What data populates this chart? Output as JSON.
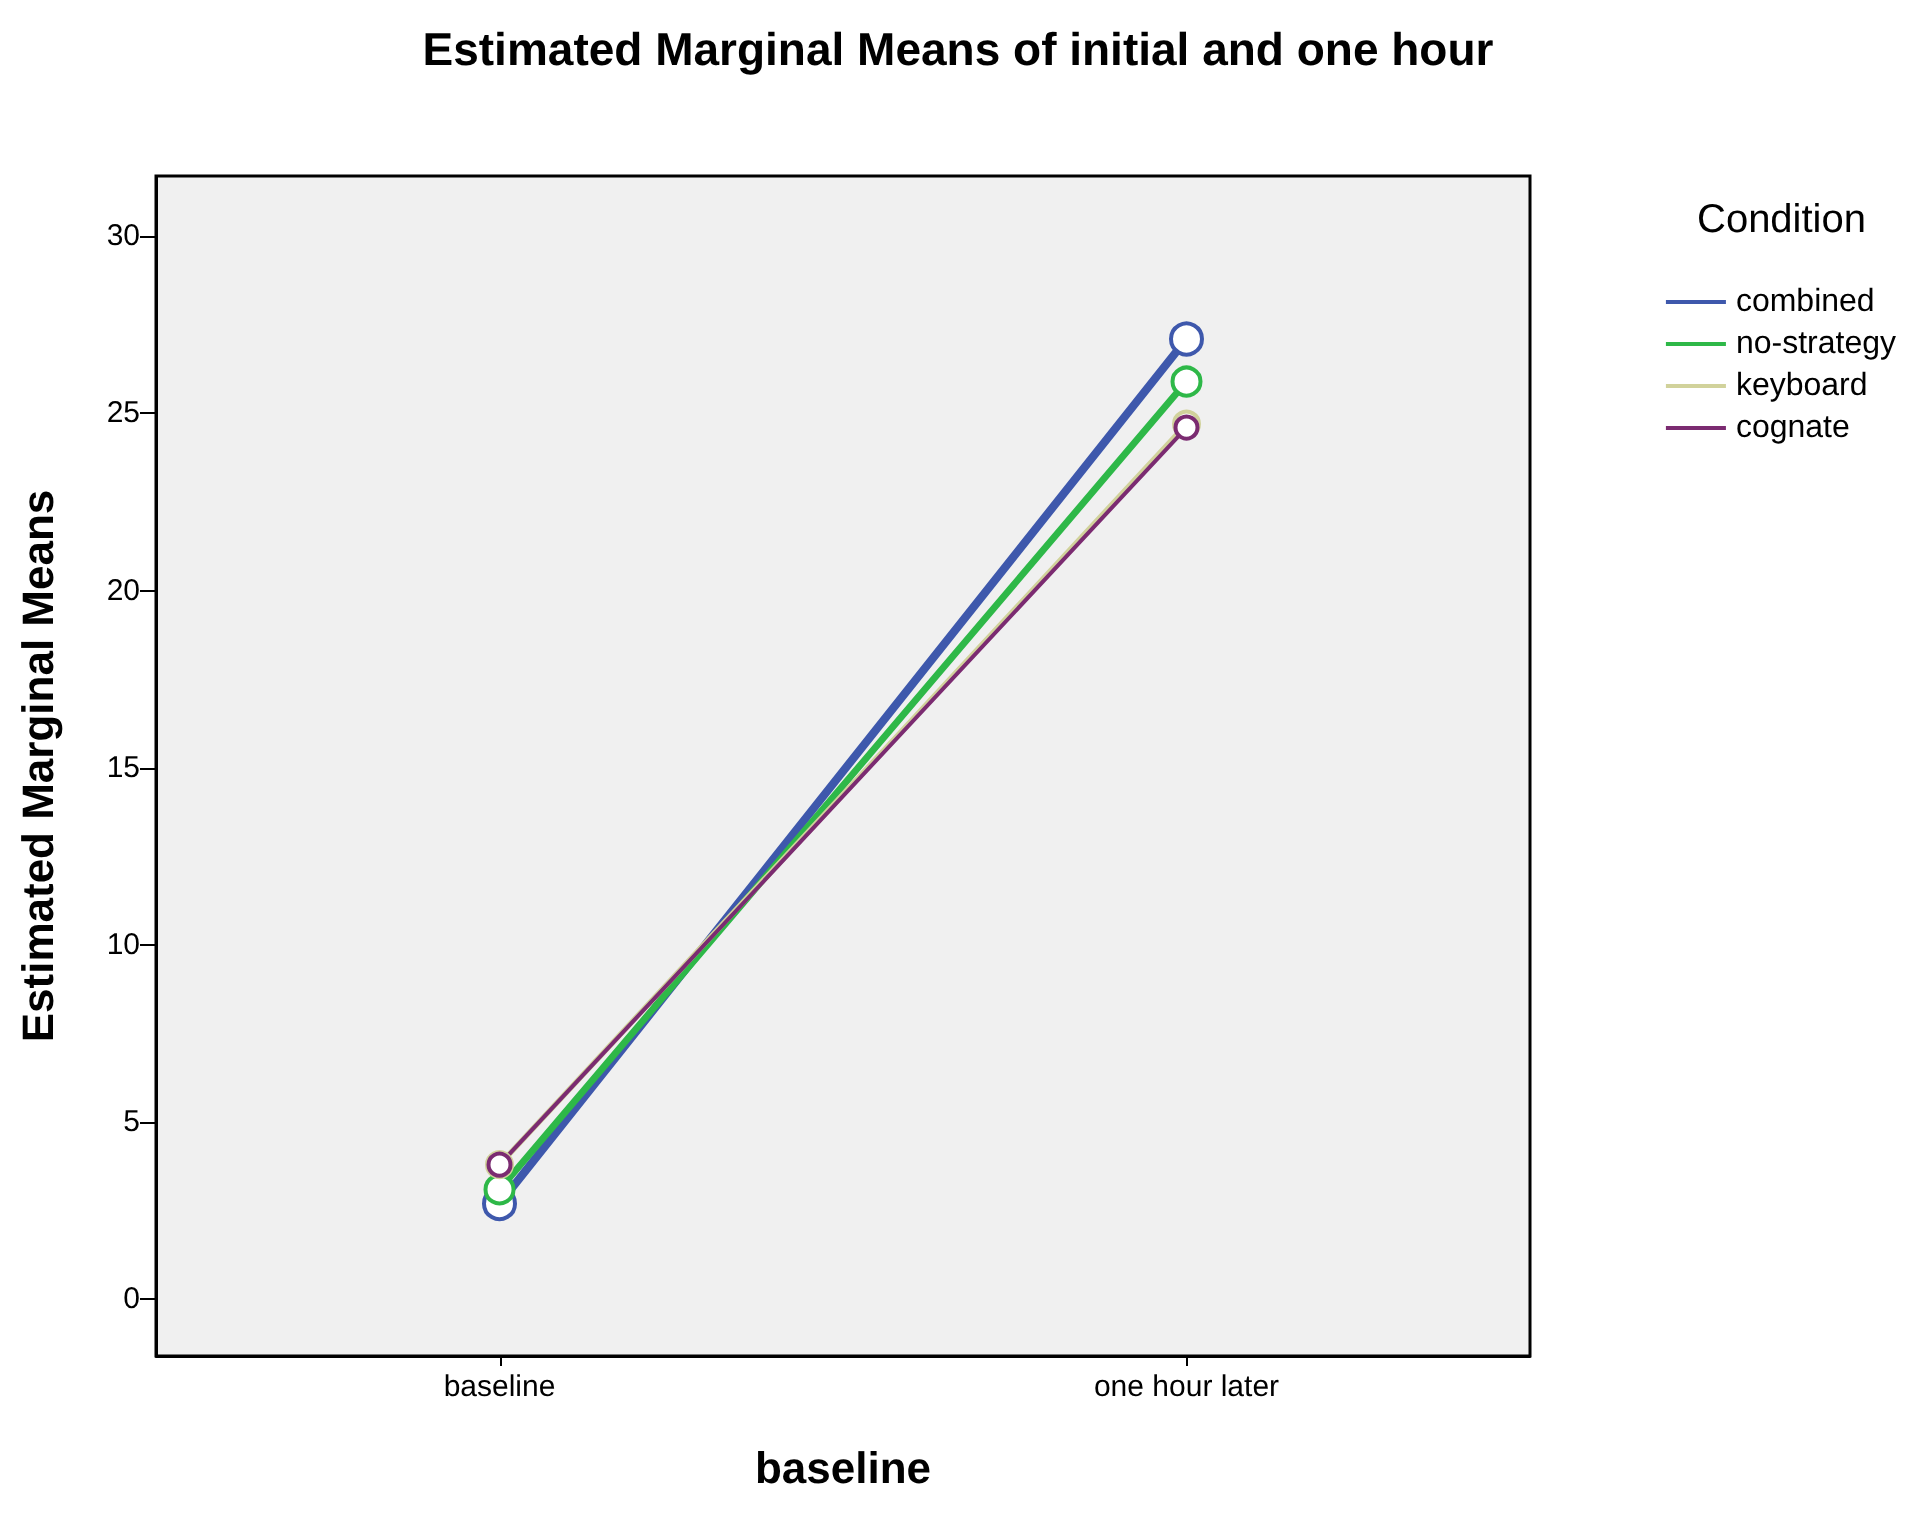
{
  "chart_data": {
    "type": "line",
    "title": "Estimated Marginal Means of initial and one hour",
    "xlabel": "baseline",
    "ylabel": "Estimated Marginal Means",
    "legend_title": "Condition",
    "categories": [
      "baseline",
      "one hour later"
    ],
    "series": [
      {
        "name": "combined",
        "color": "#3e58ac",
        "values": [
          2.7,
          27.1
        ]
      },
      {
        "name": "no-strategy",
        "color": "#2eb848",
        "values": [
          3.1,
          25.9
        ]
      },
      {
        "name": "keyboard",
        "color": "#d1d29b",
        "values": [
          3.8,
          24.7
        ]
      },
      {
        "name": "cognate",
        "color": "#7b2b71",
        "values": [
          3.8,
          24.6
        ]
      }
    ],
    "ylim": [
      -1.6,
      31.7
    ],
    "yticks": [
      0,
      5,
      10,
      15,
      20,
      25,
      30
    ],
    "grid": false,
    "legend": "right",
    "marker": "circle",
    "line_style": "solid"
  }
}
